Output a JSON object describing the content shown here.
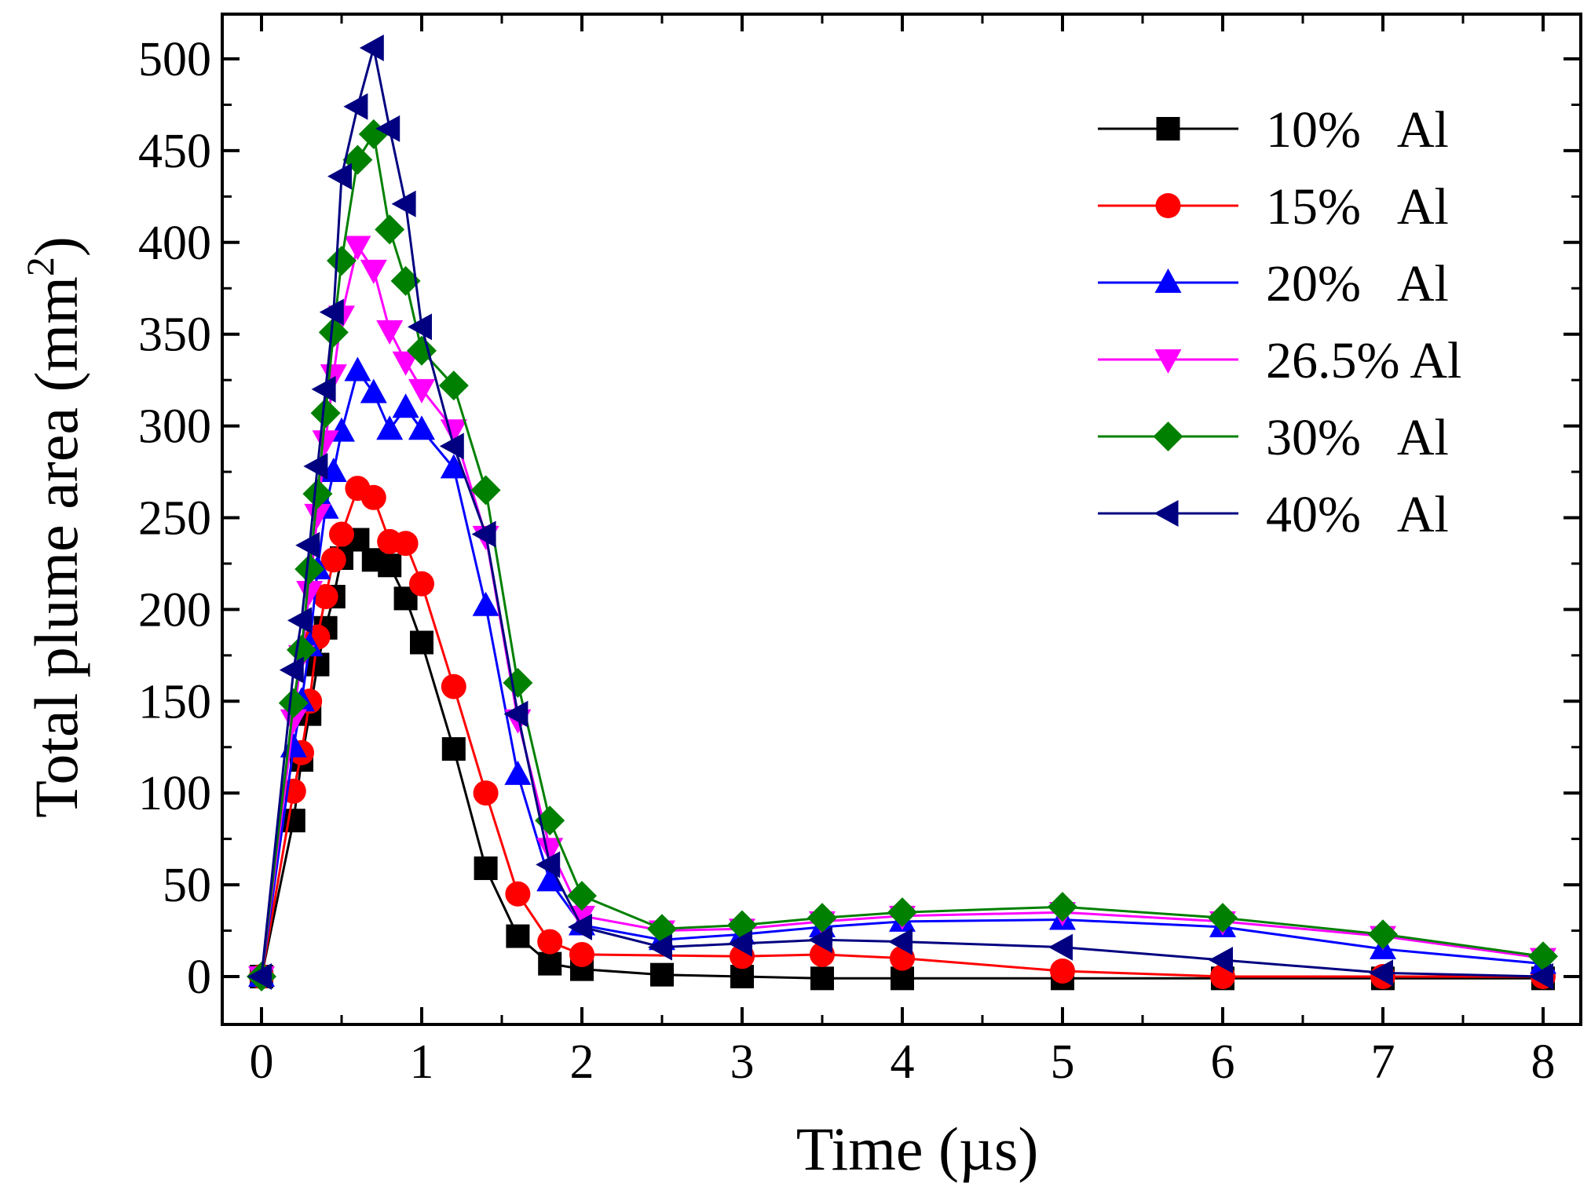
{
  "chart_data": {
    "type": "line",
    "title": "",
    "xlabel": "Time (µs)",
    "ylabel_main": "Total plume area (mm",
    "ylabel_sup": "2",
    "ylabel_close": ")",
    "xlim": [
      -0.25,
      8.3
    ],
    "ylim": [
      -25,
      525
    ],
    "xticks": [
      0,
      1,
      2,
      3,
      4,
      5,
      6,
      7,
      8
    ],
    "xtick_labels": [
      "0",
      "1",
      "2",
      "3",
      "4",
      "5",
      "6",
      "7",
      "8"
    ],
    "yticks": [
      0,
      50,
      100,
      150,
      200,
      250,
      300,
      350,
      400,
      450,
      500
    ],
    "ytick_labels": [
      "0",
      "50",
      "100",
      "150",
      "200",
      "250",
      "300",
      "350",
      "400",
      "450",
      "500"
    ],
    "legend_position": "top-right",
    "series": [
      {
        "name": "10%   Al",
        "color": "#000000",
        "marker": "square",
        "x": [
          0,
          0.2,
          0.25,
          0.3,
          0.35,
          0.4,
          0.45,
          0.5,
          0.6,
          0.7,
          0.8,
          0.9,
          1.0,
          1.2,
          1.4,
          1.6,
          1.8,
          2.0,
          2.5,
          3.0,
          3.5,
          4.0,
          5.0,
          6.0,
          7.0,
          8.0
        ],
        "y": [
          0,
          85,
          118,
          143,
          170,
          190,
          207,
          228,
          238,
          227,
          224,
          206,
          182,
          124,
          59,
          22,
          7,
          4,
          1,
          0,
          -1,
          -1,
          -1,
          -1,
          -1,
          -1
        ]
      },
      {
        "name": "15%   Al",
        "color": "#ff0000",
        "marker": "circle",
        "x": [
          0,
          0.2,
          0.25,
          0.3,
          0.35,
          0.4,
          0.45,
          0.5,
          0.6,
          0.7,
          0.8,
          0.9,
          1.0,
          1.2,
          1.4,
          1.6,
          1.8,
          2.0,
          3.0,
          3.5,
          4.0,
          5.0,
          6.0,
          7.0,
          8.0
        ],
        "y": [
          0,
          101,
          122,
          150,
          185,
          207,
          227,
          241,
          266,
          261,
          237,
          236,
          214,
          158,
          100,
          45,
          19,
          12,
          11,
          12,
          10,
          3,
          0,
          0,
          0
        ]
      },
      {
        "name": "20%   Al",
        "color": "#0000ff",
        "marker": "triangle-up",
        "x": [
          0,
          0.2,
          0.25,
          0.3,
          0.35,
          0.4,
          0.45,
          0.5,
          0.6,
          0.7,
          0.8,
          0.9,
          1.0,
          1.2,
          1.4,
          1.6,
          1.8,
          2.0,
          2.5,
          3.0,
          3.5,
          4.0,
          5.0,
          6.0,
          7.0,
          8.0
        ],
        "y": [
          0,
          125,
          150,
          180,
          222,
          255,
          275,
          297,
          330,
          318,
          298,
          310,
          298,
          277,
          202,
          110,
          52,
          28,
          20,
          23,
          27,
          30,
          31,
          27,
          15,
          7
        ]
      },
      {
        "name": "26.5% Al",
        "color": "#ff00ff",
        "marker": "triangle-down",
        "x": [
          0,
          0.2,
          0.25,
          0.3,
          0.35,
          0.4,
          0.45,
          0.5,
          0.6,
          0.7,
          0.8,
          0.9,
          1.0,
          1.2,
          1.4,
          1.6,
          1.8,
          2.0,
          2.5,
          3.0,
          3.5,
          4.0,
          5.0,
          6.0,
          7.0,
          8.0
        ],
        "y": [
          0,
          140,
          175,
          210,
          252,
          292,
          328,
          360,
          398,
          385,
          352,
          335,
          320,
          298,
          240,
          140,
          70,
          33,
          25,
          26,
          30,
          33,
          35,
          30,
          22,
          10
        ]
      },
      {
        "name": "30%   Al",
        "color": "#008000",
        "marker": "diamond",
        "x": [
          0,
          0.2,
          0.25,
          0.3,
          0.35,
          0.4,
          0.45,
          0.5,
          0.6,
          0.7,
          0.8,
          0.9,
          1.0,
          1.2,
          1.4,
          1.6,
          1.8,
          2.0,
          2.5,
          3.0,
          3.5,
          4.0,
          5.0,
          6.0,
          7.0,
          8.0
        ],
        "y": [
          0,
          149,
          178,
          222,
          263,
          307,
          351,
          390,
          445,
          459,
          407,
          379,
          341,
          322,
          265,
          160,
          85,
          44,
          26,
          28,
          32,
          35,
          38,
          32,
          23,
          11
        ]
      },
      {
        "name": "40%   Al",
        "color": "#000080",
        "marker": "triangle-left",
        "x": [
          0,
          0.2,
          0.25,
          0.3,
          0.35,
          0.4,
          0.45,
          0.5,
          0.6,
          0.7,
          0.8,
          0.9,
          1.0,
          1.2,
          1.4,
          1.6,
          1.8,
          2.0,
          2.5,
          3.0,
          3.5,
          4.0,
          5.0,
          6.0,
          7.0,
          8.0
        ],
        "y": [
          0,
          167,
          194,
          235,
          278,
          320,
          362,
          436,
          474,
          506,
          462,
          421,
          354,
          289,
          241,
          143,
          61,
          27,
          16,
          18,
          20,
          19,
          16,
          9,
          2,
          0
        ]
      }
    ]
  }
}
